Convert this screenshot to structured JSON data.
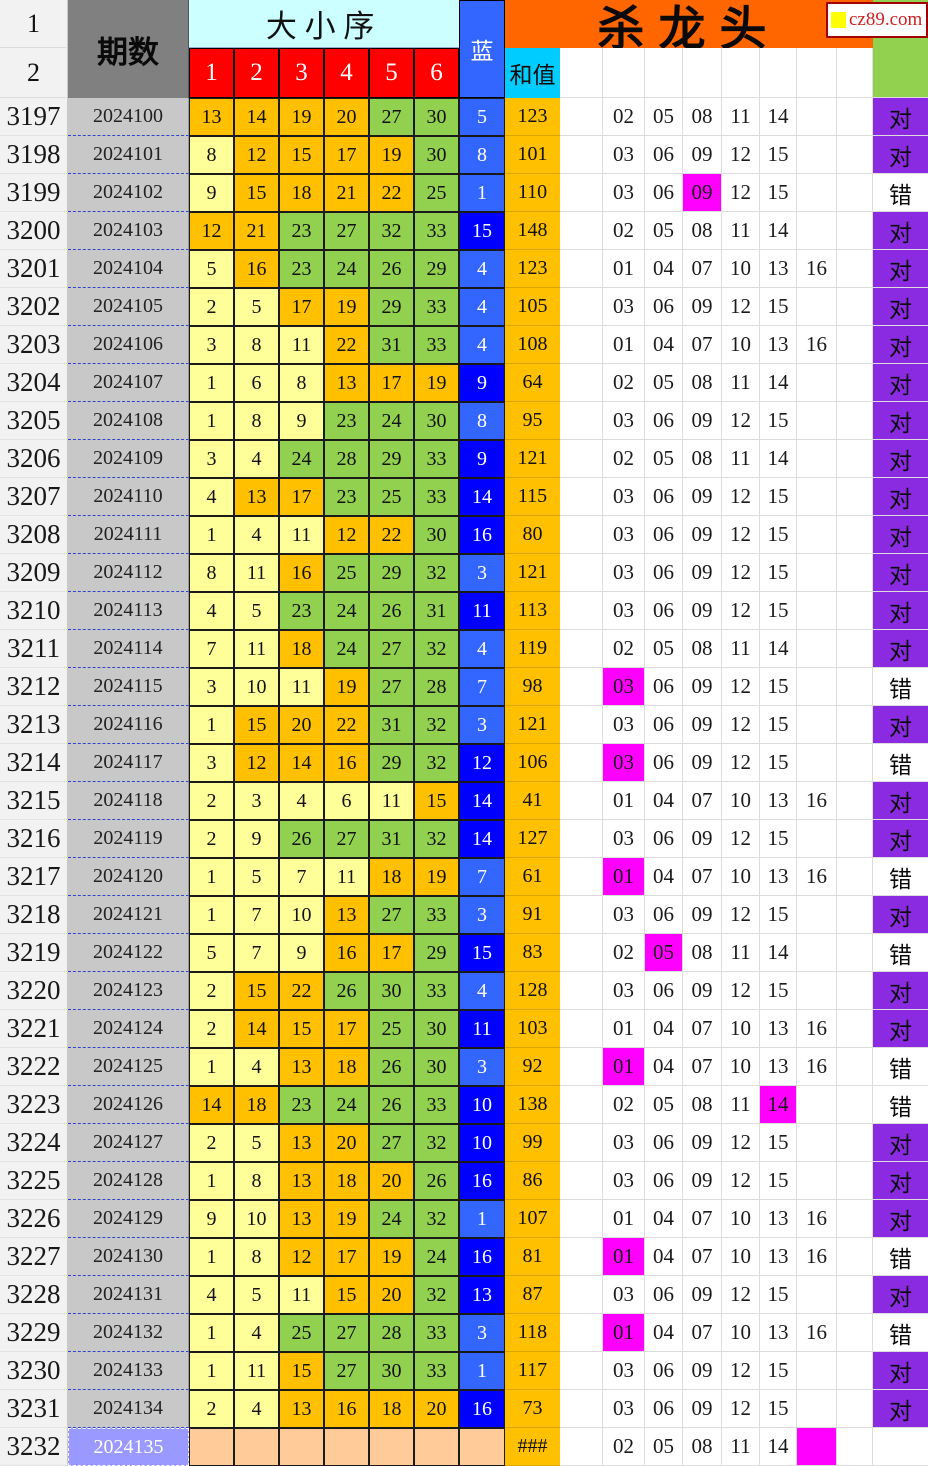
{
  "logo": {
    "text": "cz89.com"
  },
  "header": {
    "corner_row1": "1",
    "corner_row2": "2",
    "period": "期数",
    "size_order": "大小序",
    "ball_columns": [
      "1",
      "2",
      "3",
      "4",
      "5",
      "6"
    ],
    "blue": "蓝",
    "sum": "和值",
    "kill": "杀龙头"
  },
  "colors": {
    "red_header": "#FF0000",
    "orange_header": "#FF6600",
    "gray_header": "#808080",
    "period_silver": "#C8C8C8",
    "light_cyan": "#CCFFFF",
    "cyan": "#00CCFF",
    "blue_header": "#3366FF",
    "yellow_ball": "#FFFF99",
    "gold_ball": "#FFC000",
    "green_ball": "#92D050",
    "blue_ball_light": "#3366FF",
    "blue_ball_dark": "#0000FF",
    "hit_magenta": "#FF00FF",
    "result_purple": "#8A2BE2",
    "next_row_peach": "#FFCC99",
    "next_period_bg": "#9999FF",
    "logo_red": "#CC2222"
  },
  "rows": [
    {
      "idx": "3197",
      "period": "2024100",
      "balls": [
        13,
        14,
        19,
        20,
        27,
        30
      ],
      "blue": 5,
      "sum": "123",
      "kills": [
        "02",
        "05",
        "08",
        "11",
        "14"
      ],
      "hit": -1,
      "result": "对"
    },
    {
      "idx": "3198",
      "period": "2024101",
      "balls": [
        8,
        12,
        15,
        17,
        19,
        30
      ],
      "blue": 8,
      "sum": "101",
      "kills": [
        "03",
        "06",
        "09",
        "12",
        "15"
      ],
      "hit": -1,
      "result": "对"
    },
    {
      "idx": "3199",
      "period": "2024102",
      "balls": [
        9,
        15,
        18,
        21,
        22,
        25
      ],
      "blue": 1,
      "sum": "110",
      "kills": [
        "03",
        "06",
        "09",
        "12",
        "15"
      ],
      "hit": 2,
      "result": "错"
    },
    {
      "idx": "3200",
      "period": "2024103",
      "balls": [
        12,
        21,
        23,
        27,
        32,
        33
      ],
      "blue": 15,
      "sum": "148",
      "kills": [
        "02",
        "05",
        "08",
        "11",
        "14"
      ],
      "hit": -1,
      "result": "对"
    },
    {
      "idx": "3201",
      "period": "2024104",
      "balls": [
        5,
        16,
        23,
        24,
        26,
        29
      ],
      "blue": 4,
      "sum": "123",
      "kills": [
        "01",
        "04",
        "07",
        "10",
        "13",
        "16"
      ],
      "hit": -1,
      "result": "对"
    },
    {
      "idx": "3202",
      "period": "2024105",
      "balls": [
        2,
        5,
        17,
        19,
        29,
        33
      ],
      "blue": 4,
      "sum": "105",
      "kills": [
        "03",
        "06",
        "09",
        "12",
        "15"
      ],
      "hit": -1,
      "result": "对"
    },
    {
      "idx": "3203",
      "period": "2024106",
      "balls": [
        3,
        8,
        11,
        22,
        31,
        33
      ],
      "blue": 4,
      "sum": "108",
      "kills": [
        "01",
        "04",
        "07",
        "10",
        "13",
        "16"
      ],
      "hit": -1,
      "result": "对"
    },
    {
      "idx": "3204",
      "period": "2024107",
      "balls": [
        1,
        6,
        8,
        13,
        17,
        19
      ],
      "blue": 9,
      "sum": "64",
      "kills": [
        "02",
        "05",
        "08",
        "11",
        "14"
      ],
      "hit": -1,
      "result": "对"
    },
    {
      "idx": "3205",
      "period": "2024108",
      "balls": [
        1,
        8,
        9,
        23,
        24,
        30
      ],
      "blue": 8,
      "sum": "95",
      "kills": [
        "03",
        "06",
        "09",
        "12",
        "15"
      ],
      "hit": -1,
      "result": "对"
    },
    {
      "idx": "3206",
      "period": "2024109",
      "balls": [
        3,
        4,
        24,
        28,
        29,
        33
      ],
      "blue": 9,
      "sum": "121",
      "kills": [
        "02",
        "05",
        "08",
        "11",
        "14"
      ],
      "hit": -1,
      "result": "对"
    },
    {
      "idx": "3207",
      "period": "2024110",
      "balls": [
        4,
        13,
        17,
        23,
        25,
        33
      ],
      "blue": 14,
      "sum": "115",
      "kills": [
        "03",
        "06",
        "09",
        "12",
        "15"
      ],
      "hit": -1,
      "result": "对"
    },
    {
      "idx": "3208",
      "period": "2024111",
      "balls": [
        1,
        4,
        11,
        12,
        22,
        30
      ],
      "blue": 16,
      "sum": "80",
      "kills": [
        "03",
        "06",
        "09",
        "12",
        "15"
      ],
      "hit": -1,
      "result": "对"
    },
    {
      "idx": "3209",
      "period": "2024112",
      "balls": [
        8,
        11,
        16,
        25,
        29,
        32
      ],
      "blue": 3,
      "sum": "121",
      "kills": [
        "03",
        "06",
        "09",
        "12",
        "15"
      ],
      "hit": -1,
      "result": "对"
    },
    {
      "idx": "3210",
      "period": "2024113",
      "balls": [
        4,
        5,
        23,
        24,
        26,
        31
      ],
      "blue": 11,
      "sum": "113",
      "kills": [
        "03",
        "06",
        "09",
        "12",
        "15"
      ],
      "hit": -1,
      "result": "对"
    },
    {
      "idx": "3211",
      "period": "2024114",
      "balls": [
        7,
        11,
        18,
        24,
        27,
        32
      ],
      "blue": 4,
      "sum": "119",
      "kills": [
        "02",
        "05",
        "08",
        "11",
        "14"
      ],
      "hit": -1,
      "result": "对"
    },
    {
      "idx": "3212",
      "period": "2024115",
      "balls": [
        3,
        10,
        11,
        19,
        27,
        28
      ],
      "blue": 7,
      "sum": "98",
      "kills": [
        "03",
        "06",
        "09",
        "12",
        "15"
      ],
      "hit": 0,
      "result": "错"
    },
    {
      "idx": "3213",
      "period": "2024116",
      "balls": [
        1,
        15,
        20,
        22,
        31,
        32
      ],
      "blue": 3,
      "sum": "121",
      "kills": [
        "03",
        "06",
        "09",
        "12",
        "15"
      ],
      "hit": -1,
      "result": "对"
    },
    {
      "idx": "3214",
      "period": "2024117",
      "balls": [
        3,
        12,
        14,
        16,
        29,
        32
      ],
      "blue": 12,
      "sum": "106",
      "kills": [
        "03",
        "06",
        "09",
        "12",
        "15"
      ],
      "hit": 0,
      "result": "错"
    },
    {
      "idx": "3215",
      "period": "2024118",
      "balls": [
        2,
        3,
        4,
        6,
        11,
        15
      ],
      "blue": 14,
      "sum": "41",
      "kills": [
        "01",
        "04",
        "07",
        "10",
        "13",
        "16"
      ],
      "hit": -1,
      "result": "对"
    },
    {
      "idx": "3216",
      "period": "2024119",
      "balls": [
        2,
        9,
        26,
        27,
        31,
        32
      ],
      "blue": 14,
      "sum": "127",
      "kills": [
        "03",
        "06",
        "09",
        "12",
        "15"
      ],
      "hit": -1,
      "result": "对"
    },
    {
      "idx": "3217",
      "period": "2024120",
      "balls": [
        1,
        5,
        7,
        11,
        18,
        19
      ],
      "blue": 7,
      "sum": "61",
      "kills": [
        "01",
        "04",
        "07",
        "10",
        "13",
        "16"
      ],
      "hit": 0,
      "result": "错"
    },
    {
      "idx": "3218",
      "period": "2024121",
      "balls": [
        1,
        7,
        10,
        13,
        27,
        33
      ],
      "blue": 3,
      "sum": "91",
      "kills": [
        "03",
        "06",
        "09",
        "12",
        "15"
      ],
      "hit": -1,
      "result": "对"
    },
    {
      "idx": "3219",
      "period": "2024122",
      "balls": [
        5,
        7,
        9,
        16,
        17,
        29
      ],
      "blue": 15,
      "sum": "83",
      "kills": [
        "02",
        "05",
        "08",
        "11",
        "14"
      ],
      "hit": 1,
      "result": "错"
    },
    {
      "idx": "3220",
      "period": "2024123",
      "balls": [
        2,
        15,
        22,
        26,
        30,
        33
      ],
      "blue": 4,
      "sum": "128",
      "kills": [
        "03",
        "06",
        "09",
        "12",
        "15"
      ],
      "hit": -1,
      "result": "对"
    },
    {
      "idx": "3221",
      "period": "2024124",
      "balls": [
        2,
        14,
        15,
        17,
        25,
        30
      ],
      "blue": 11,
      "sum": "103",
      "kills": [
        "01",
        "04",
        "07",
        "10",
        "13",
        "16"
      ],
      "hit": -1,
      "result": "对"
    },
    {
      "idx": "3222",
      "period": "2024125",
      "balls": [
        1,
        4,
        13,
        18,
        26,
        30
      ],
      "blue": 3,
      "sum": "92",
      "kills": [
        "01",
        "04",
        "07",
        "10",
        "13",
        "16"
      ],
      "hit": 0,
      "result": "错"
    },
    {
      "idx": "3223",
      "period": "2024126",
      "balls": [
        14,
        18,
        23,
        24,
        26,
        33
      ],
      "blue": 10,
      "sum": "138",
      "kills": [
        "02",
        "05",
        "08",
        "11",
        "14"
      ],
      "hit": 4,
      "result": "错"
    },
    {
      "idx": "3224",
      "period": "2024127",
      "balls": [
        2,
        5,
        13,
        20,
        27,
        32
      ],
      "blue": 10,
      "sum": "99",
      "kills": [
        "03",
        "06",
        "09",
        "12",
        "15"
      ],
      "hit": -1,
      "result": "对"
    },
    {
      "idx": "3225",
      "period": "2024128",
      "balls": [
        1,
        8,
        13,
        18,
        20,
        26
      ],
      "blue": 16,
      "sum": "86",
      "kills": [
        "03",
        "06",
        "09",
        "12",
        "15"
      ],
      "hit": -1,
      "result": "对"
    },
    {
      "idx": "3226",
      "period": "2024129",
      "balls": [
        9,
        10,
        13,
        19,
        24,
        32
      ],
      "blue": 1,
      "sum": "107",
      "kills": [
        "01",
        "04",
        "07",
        "10",
        "13",
        "16"
      ],
      "hit": -1,
      "result": "对"
    },
    {
      "idx": "3227",
      "period": "2024130",
      "balls": [
        1,
        8,
        12,
        17,
        19,
        24
      ],
      "blue": 16,
      "sum": "81",
      "kills": [
        "01",
        "04",
        "07",
        "10",
        "13",
        "16"
      ],
      "hit": 0,
      "result": "错"
    },
    {
      "idx": "3228",
      "period": "2024131",
      "balls": [
        4,
        5,
        11,
        15,
        20,
        32
      ],
      "blue": 13,
      "sum": "87",
      "kills": [
        "03",
        "06",
        "09",
        "12",
        "15"
      ],
      "hit": -1,
      "result": "对"
    },
    {
      "idx": "3229",
      "period": "2024132",
      "balls": [
        1,
        4,
        25,
        27,
        28,
        33
      ],
      "blue": 3,
      "sum": "118",
      "kills": [
        "01",
        "04",
        "07",
        "10",
        "13",
        "16"
      ],
      "hit": 0,
      "result": "错"
    },
    {
      "idx": "3230",
      "period": "2024133",
      "balls": [
        1,
        11,
        15,
        27,
        30,
        33
      ],
      "blue": 1,
      "sum": "117",
      "kills": [
        "03",
        "06",
        "09",
        "12",
        "15"
      ],
      "hit": -1,
      "result": "对"
    },
    {
      "idx": "3231",
      "period": "2024134",
      "balls": [
        2,
        4,
        13,
        16,
        18,
        20
      ],
      "blue": 16,
      "sum": "73",
      "kills": [
        "03",
        "06",
        "09",
        "12",
        "15"
      ],
      "hit": -1,
      "result": "对"
    },
    {
      "idx": "3232",
      "period": "2024135",
      "balls": [],
      "blue": null,
      "sum": "###",
      "kills": [
        "02",
        "05",
        "08",
        "11",
        "14",
        ""
      ],
      "hit": 5,
      "result": "",
      "next": true
    }
  ]
}
